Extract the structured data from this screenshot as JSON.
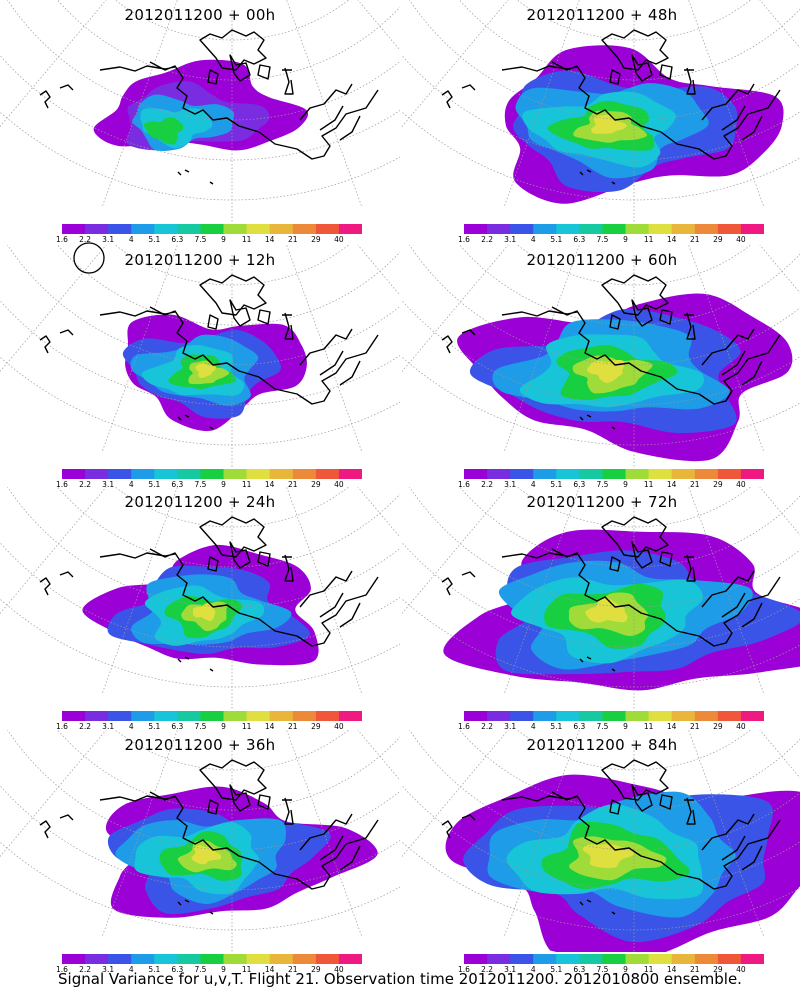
{
  "panels": [
    {
      "title": "2012011200 + 00h",
      "lead": 0
    },
    {
      "title": "2012011200 + 48h",
      "lead": 48
    },
    {
      "title": "2012011200 + 12h",
      "lead": 12
    },
    {
      "title": "2012011200 + 60h",
      "lead": 60
    },
    {
      "title": "2012011200 + 24h",
      "lead": 24
    },
    {
      "title": "2012011200 + 72h",
      "lead": 72
    },
    {
      "title": "2012011200 + 36h",
      "lead": 36
    },
    {
      "title": "2012011200 + 84h",
      "lead": 84
    }
  ],
  "colorbar": {
    "labels": [
      "1.6",
      "2.2",
      "3.1",
      "4",
      "5.1",
      "6.3",
      "7.5",
      "9",
      "11",
      "14",
      "21",
      "29",
      "40"
    ],
    "colors": [
      "#9b00d6",
      "#7a2ce0",
      "#3b54e8",
      "#1e9ce8",
      "#18c4d8",
      "#16c9a0",
      "#17cf40",
      "#9fdc3a",
      "#dfdf40",
      "#e8b63a",
      "#ed8a3a",
      "#f0563a",
      "#ee1a82"
    ]
  },
  "footer": "Signal Variance for u,v,T. Flight 21. Observation time 2012011200. 2012010800 ensemble."
}
